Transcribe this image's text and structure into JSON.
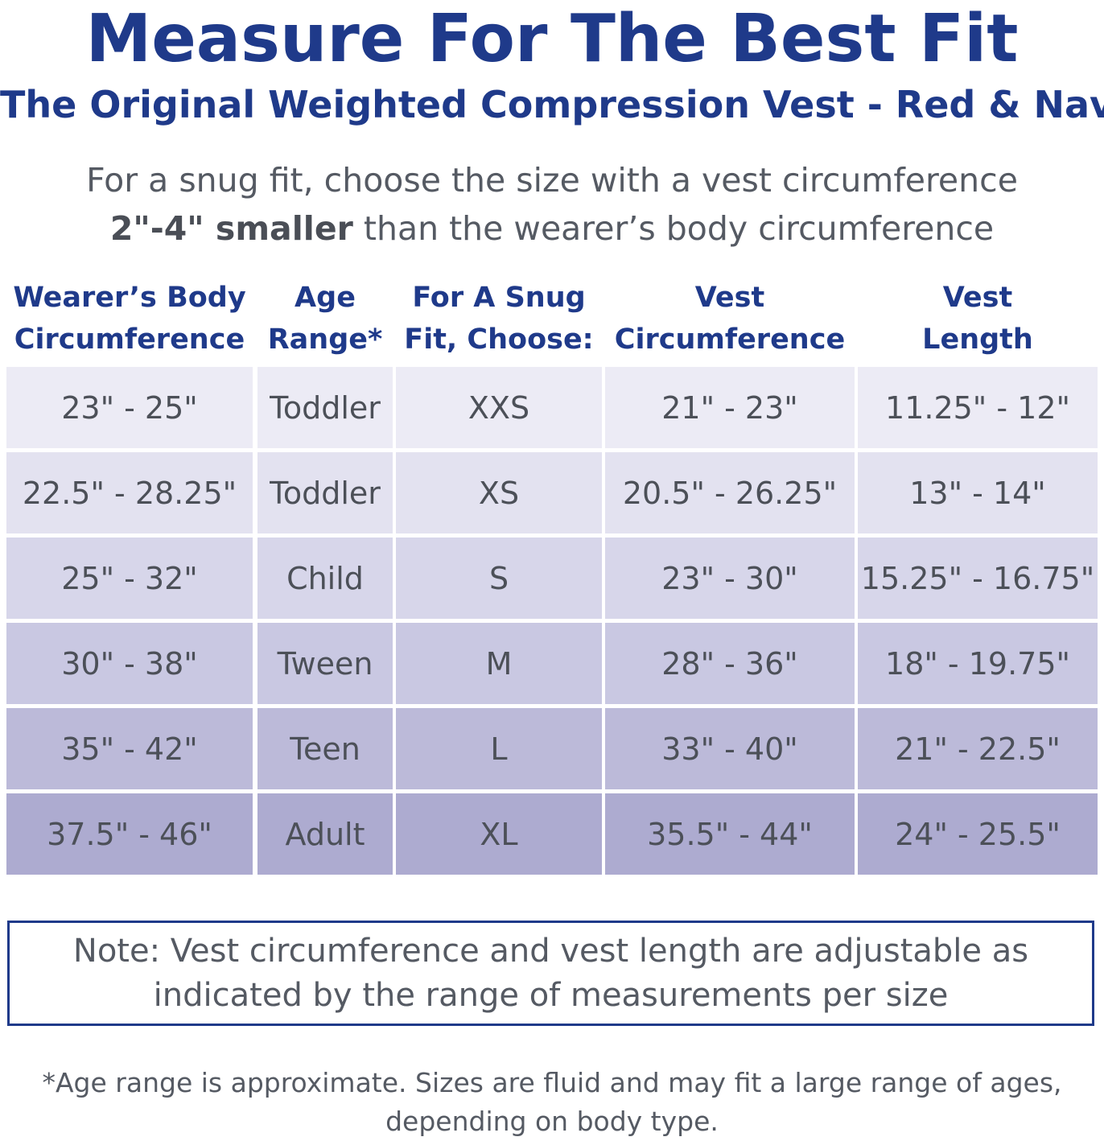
{
  "title": "Measure For The Best Fit",
  "subtitle": "The Original Weighted Compression Vest - Red & Navy",
  "intro": {
    "line1": "For a snug fit, choose the size with a vest circumference",
    "line2_bold": "2\"-4\" smaller",
    "line2_rest": " than the wearer’s body circumference"
  },
  "table": {
    "headers": [
      "Wearer’s Body\nCircumference",
      "Age\nRange*",
      "For A Snug\nFit, Choose:",
      "Vest\nCircumference",
      "Vest\nLength"
    ],
    "rows": [
      [
        "23\" - 25\"",
        "Toddler",
        "XXS",
        "21\" - 23\"",
        "11.25\" - 12\""
      ],
      [
        "22.5\" - 28.25\"",
        "Toddler",
        "XS",
        "20.5\" - 26.25\"",
        "13\" - 14\""
      ],
      [
        "25\" - 32\"",
        "Child",
        "S",
        "23\" - 30\"",
        "15.25\" - 16.75\""
      ],
      [
        "30\" - 38\"",
        "Tween",
        "M",
        "28\" - 36\"",
        "18\" - 19.75\""
      ],
      [
        "35\" - 42\"",
        "Teen",
        "L",
        "33\" - 40\"",
        "21\" - 22.5\""
      ],
      [
        "37.5\" - 46\"",
        "Adult",
        "XL",
        "35.5\" -  44\"",
        "24\" - 25.5\""
      ]
    ],
    "row_colors": [
      "#ecebf5",
      "#e3e2f0",
      "#d7d6ea",
      "#c9c8e2",
      "#bcbad9",
      "#adabd0"
    ]
  },
  "note": "Note: Vest circumference and vest length are adjustable as\nindicated by the range of measurements per size",
  "footnote": "*Age range is approximate. Sizes are fluid and may fit a large range of ages,\ndepending on body type.",
  "colors": {
    "accent": "#1f3a8a",
    "body_text": "#555a63"
  }
}
